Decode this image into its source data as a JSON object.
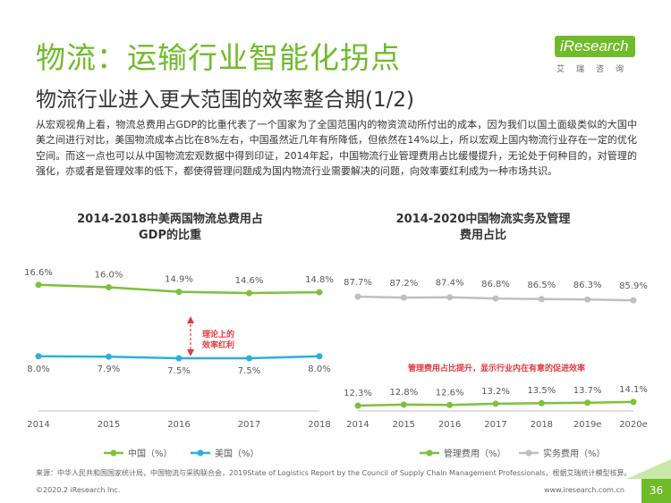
{
  "header": {
    "title": "物流：运输行业智能化拐点",
    "subtitle": "物流行业进入更大范围的效率整合期(1/2)"
  },
  "logo": {
    "brand": "iResearch",
    "sub": "艾瑞咨询"
  },
  "intro": "从宏观视角上看，物流总费用占GDP的比重代表了一个国家为了全国范围内的物资流动所付出的成本，因为我们以国土面级类似的大国中美之间进行对比，美国物流成本占比在8%左右，中国虽然近几年有所降低，但依然在14%以上，所以宏观上国内物流行业存在一定的优化空间。而这一点也可以从中国物流宏观数据中得到印证，2014年起，中国物流行业管理费用占比缓慢提升，无论处于何种目的，对管理的强化，亦或者是管理效率的低下，都使得管理问题成为国内物流行业需要解决的问题，向效率要红利成为一种市场共识。",
  "colors": {
    "accent": "#6fbb2a",
    "china": "#7dc13a",
    "usa": "#2ab0e0",
    "mgmt": "#7dc13a",
    "service": "#bfbfbf",
    "annotation": "#e8383d"
  },
  "chart_data": [
    {
      "type": "line",
      "title_line1": "2014-2018中美两国物流总费用占",
      "title_line2": "GDP的比重",
      "x": [
        "2014",
        "2015",
        "2016",
        "2017",
        "2018"
      ],
      "series": [
        {
          "name": "中国（%）",
          "values": [
            16.6,
            16.0,
            14.9,
            14.6,
            14.8
          ],
          "labels": [
            "16.6%",
            "16.0%",
            "14.9%",
            "14.6%",
            "14.8%"
          ]
        },
        {
          "name": "美国（%）",
          "values": [
            8.0,
            7.9,
            7.5,
            7.5,
            8.0
          ],
          "labels": [
            "8.0%",
            "7.9%",
            "7.5%",
            "7.5%",
            "8.0%"
          ]
        }
      ],
      "annotation": [
        "理论上的",
        "效率红利"
      ],
      "legend": "bottom"
    },
    {
      "type": "line",
      "title_line1": "2014-2020中国物流实务及管理",
      "title_line2": "费用占比",
      "x": [
        "2014",
        "2015",
        "2016",
        "2017",
        "2018",
        "2019e",
        "2020e"
      ],
      "series": [
        {
          "name": "管理费用（%）",
          "values": [
            12.3,
            12.8,
            12.6,
            13.2,
            13.5,
            13.7,
            14.1
          ],
          "labels": [
            "12.3%",
            "12.8%",
            "12.6%",
            "13.2%",
            "13.5%",
            "13.7%",
            "14.1%"
          ]
        },
        {
          "name": "实务费用（%）",
          "values": [
            87.7,
            87.2,
            87.4,
            86.8,
            86.5,
            86.3,
            85.9
          ],
          "labels": [
            "87.7%",
            "87.2%",
            "87.4%",
            "86.8%",
            "86.5%",
            "86.3%",
            "85.9%"
          ]
        }
      ],
      "annotation": [
        "管理费用占比提升，显示行业内在有意的促进效率"
      ],
      "legend": "bottom"
    }
  ],
  "footer": {
    "source": "来源：中华人民共和国国家统计局，中国物流与采购联合会，2019State of Logistics Report by the Council of Supply Chain Management Professionals，根据艾瑞统计模型核算。",
    "copyright": "©2020.2 iResearch Inc.",
    "website": "www.iresearch.com.cn",
    "page": "36"
  }
}
